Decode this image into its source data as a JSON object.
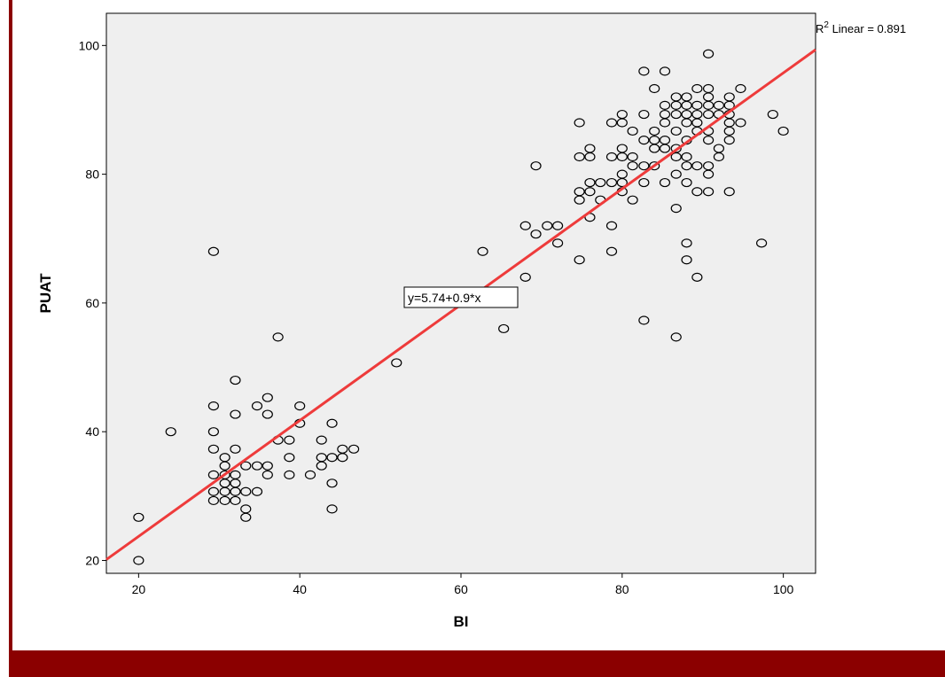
{
  "chart_data": {
    "type": "scatter",
    "xlabel": "BI",
    "ylabel": "PUAT",
    "xlim": [
      16,
      104
    ],
    "ylim": [
      18,
      105
    ],
    "xticks": [
      20,
      40,
      60,
      80,
      100
    ],
    "yticks": [
      20,
      40,
      60,
      80,
      100
    ],
    "grid": false,
    "colors": {
      "plot_background": "#efefef",
      "fit_line": "#ee3b3b",
      "marker": "#000000",
      "frame": "#8b0000"
    },
    "fit_line": {
      "intercept": 5.74,
      "slope": 0.9,
      "equation_label": "y=5.74+0.9*x",
      "r2_prefix": "R",
      "r2_superscript": "2",
      "r2_label": " Linear = 0.891"
    },
    "points": [
      [
        20,
        26.7
      ],
      [
        20,
        20
      ],
      [
        24,
        40
      ],
      [
        29.3,
        68
      ],
      [
        29.3,
        44
      ],
      [
        29.3,
        40
      ],
      [
        29.3,
        37.3
      ],
      [
        29.3,
        33.3
      ],
      [
        29.3,
        30.7
      ],
      [
        29.3,
        29.3
      ],
      [
        30.7,
        36
      ],
      [
        30.7,
        34.7
      ],
      [
        30.7,
        33.3
      ],
      [
        30.7,
        32
      ],
      [
        30.7,
        30.7
      ],
      [
        30.7,
        29.3
      ],
      [
        32,
        48
      ],
      [
        32,
        42.7
      ],
      [
        32,
        37.3
      ],
      [
        32,
        33.3
      ],
      [
        32,
        32
      ],
      [
        32,
        30.7
      ],
      [
        32,
        29.3
      ],
      [
        33.3,
        34.7
      ],
      [
        33.3,
        30.7
      ],
      [
        33.3,
        28
      ],
      [
        33.3,
        26.7
      ],
      [
        34.7,
        44
      ],
      [
        34.7,
        34.7
      ],
      [
        34.7,
        30.7
      ],
      [
        36,
        45.3
      ],
      [
        36,
        42.7
      ],
      [
        36,
        34.7
      ],
      [
        36,
        33.3
      ],
      [
        37.3,
        54.7
      ],
      [
        37.3,
        38.7
      ],
      [
        38.7,
        38.7
      ],
      [
        38.7,
        36
      ],
      [
        38.7,
        33.3
      ],
      [
        40,
        44
      ],
      [
        40,
        41.3
      ],
      [
        41.3,
        33.3
      ],
      [
        42.7,
        38.7
      ],
      [
        42.7,
        36
      ],
      [
        42.7,
        34.7
      ],
      [
        44,
        41.3
      ],
      [
        44,
        36
      ],
      [
        44,
        32
      ],
      [
        44,
        28
      ],
      [
        45.3,
        37.3
      ],
      [
        45.3,
        36
      ],
      [
        46.7,
        37.3
      ],
      [
        52,
        50.7
      ],
      [
        62.7,
        68
      ],
      [
        65.3,
        56
      ],
      [
        68,
        72
      ],
      [
        68,
        64
      ],
      [
        69.3,
        81.3
      ],
      [
        69.3,
        70.7
      ],
      [
        70.7,
        72
      ],
      [
        72,
        72
      ],
      [
        72,
        69.3
      ],
      [
        74.7,
        88
      ],
      [
        74.7,
        82.7
      ],
      [
        74.7,
        77.3
      ],
      [
        74.7,
        76
      ],
      [
        74.7,
        66.7
      ],
      [
        76,
        84
      ],
      [
        76,
        82.7
      ],
      [
        76,
        78.7
      ],
      [
        76,
        77.3
      ],
      [
        76,
        73.3
      ],
      [
        77.3,
        78.7
      ],
      [
        77.3,
        76
      ],
      [
        78.7,
        88
      ],
      [
        78.7,
        82.7
      ],
      [
        78.7,
        78.7
      ],
      [
        78.7,
        72
      ],
      [
        78.7,
        68
      ],
      [
        80,
        89.3
      ],
      [
        80,
        88
      ],
      [
        80,
        84
      ],
      [
        80,
        82.7
      ],
      [
        80,
        80
      ],
      [
        80,
        78.7
      ],
      [
        80,
        77.3
      ],
      [
        81.3,
        86.7
      ],
      [
        81.3,
        82.7
      ],
      [
        81.3,
        81.3
      ],
      [
        81.3,
        76
      ],
      [
        82.7,
        96
      ],
      [
        82.7,
        89.3
      ],
      [
        82.7,
        85.3
      ],
      [
        82.7,
        81.3
      ],
      [
        82.7,
        78.7
      ],
      [
        82.7,
        57.3
      ],
      [
        84,
        93.3
      ],
      [
        84,
        86.7
      ],
      [
        84,
        85.3
      ],
      [
        84,
        84
      ],
      [
        84,
        81.3
      ],
      [
        85.3,
        96
      ],
      [
        85.3,
        90.7
      ],
      [
        85.3,
        89.3
      ],
      [
        85.3,
        88
      ],
      [
        85.3,
        85.3
      ],
      [
        85.3,
        84
      ],
      [
        85.3,
        78.7
      ],
      [
        86.7,
        92
      ],
      [
        86.7,
        90.7
      ],
      [
        86.7,
        89.3
      ],
      [
        86.7,
        86.7
      ],
      [
        86.7,
        84
      ],
      [
        86.7,
        82.7
      ],
      [
        86.7,
        80
      ],
      [
        86.7,
        74.7
      ],
      [
        86.7,
        54.7
      ],
      [
        88,
        92
      ],
      [
        88,
        90.7
      ],
      [
        88,
        89.3
      ],
      [
        88,
        88
      ],
      [
        88,
        85.3
      ],
      [
        88,
        82.7
      ],
      [
        88,
        81.3
      ],
      [
        88,
        78.7
      ],
      [
        88,
        69.3
      ],
      [
        88,
        66.7
      ],
      [
        89.3,
        93.3
      ],
      [
        89.3,
        90.7
      ],
      [
        89.3,
        89.3
      ],
      [
        89.3,
        88
      ],
      [
        89.3,
        86.7
      ],
      [
        89.3,
        81.3
      ],
      [
        89.3,
        77.3
      ],
      [
        89.3,
        64
      ],
      [
        90.7,
        98.7
      ],
      [
        90.7,
        93.3
      ],
      [
        90.7,
        92
      ],
      [
        90.7,
        90.7
      ],
      [
        90.7,
        89.3
      ],
      [
        90.7,
        86.7
      ],
      [
        90.7,
        85.3
      ],
      [
        90.7,
        81.3
      ],
      [
        90.7,
        80
      ],
      [
        90.7,
        77.3
      ],
      [
        92,
        90.7
      ],
      [
        92,
        89.3
      ],
      [
        92,
        84
      ],
      [
        92,
        82.7
      ],
      [
        93.3,
        92
      ],
      [
        93.3,
        90.7
      ],
      [
        93.3,
        89.3
      ],
      [
        93.3,
        88
      ],
      [
        93.3,
        86.7
      ],
      [
        93.3,
        85.3
      ],
      [
        93.3,
        77.3
      ],
      [
        94.7,
        93.3
      ],
      [
        94.7,
        88
      ],
      [
        97.3,
        69.3
      ],
      [
        98.7,
        89.3
      ],
      [
        100,
        86.7
      ]
    ]
  }
}
